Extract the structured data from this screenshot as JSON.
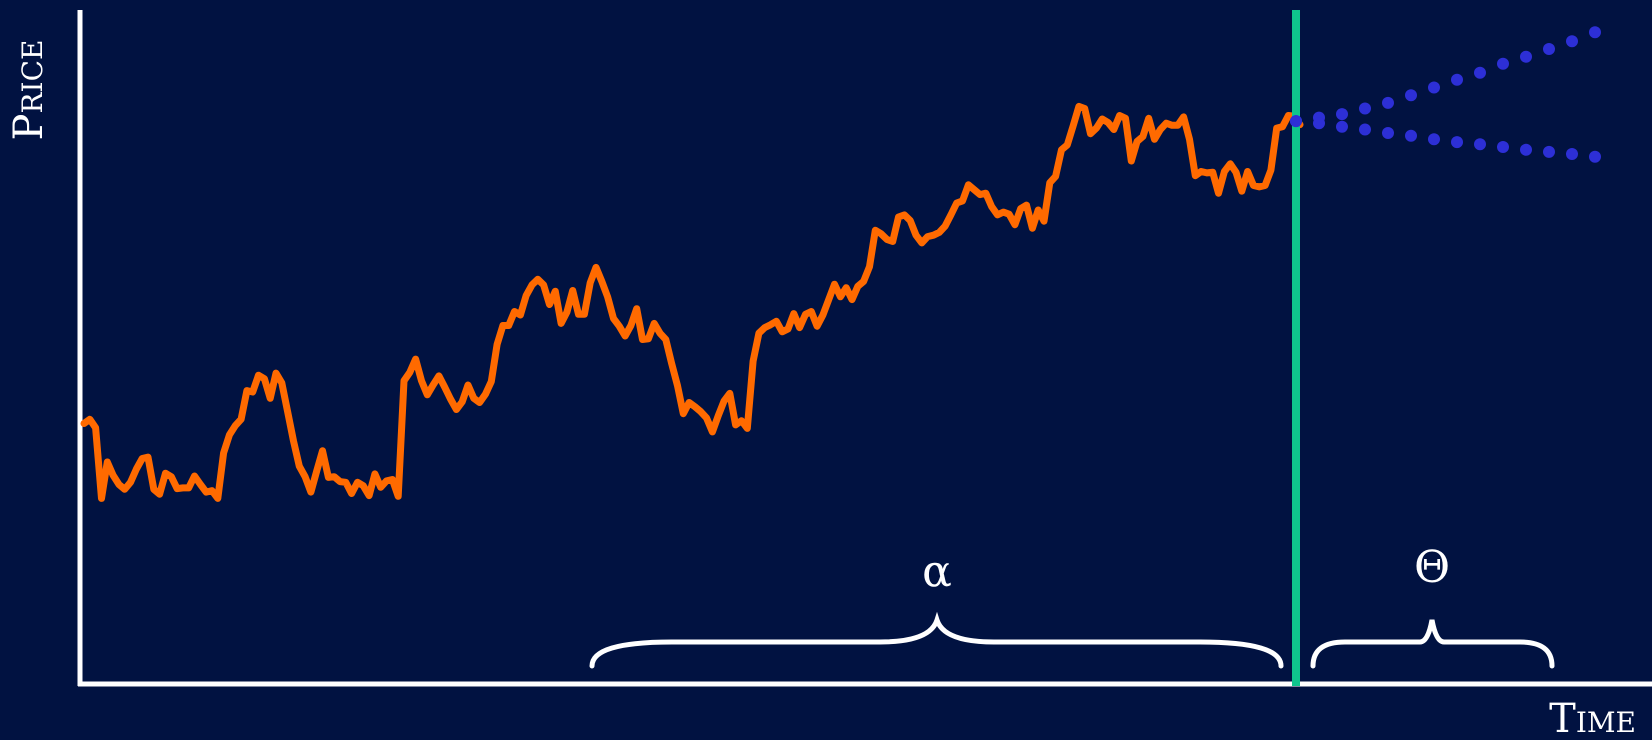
{
  "chart_data": {
    "type": "line",
    "xlabel": "Time",
    "ylabel": "Price",
    "ylim": [
      0,
      100
    ],
    "grid": false,
    "legend": "none",
    "series": [
      {
        "role": "history",
        "color": "#ff6a00",
        "values": [
          39.5,
          40.1,
          38.9,
          28.8,
          34.0,
          32.1,
          30.8,
          30.1,
          31.1,
          33.0,
          34.5,
          34.7,
          30.1,
          29.4,
          32.4,
          31.9,
          30.2,
          30.3,
          30.3,
          32.0,
          30.8,
          29.7,
          29.9,
          28.8,
          35.3,
          37.9,
          39.2,
          40.1,
          44.2,
          44.0,
          46.4,
          45.9,
          43.1,
          46.7,
          45.3,
          41.2,
          37.0,
          33.4,
          31.9,
          29.7,
          32.7,
          35.6,
          31.8,
          31.9,
          31.2,
          31.1,
          29.5,
          31.1,
          30.6,
          29.2,
          32.3,
          30.4,
          31.3,
          31.5,
          29.1,
          45.6,
          46.8,
          48.7,
          45.6,
          43.6,
          45.0,
          46.3,
          44.7,
          43.0,
          41.5,
          42.6,
          45.0,
          43.1,
          42.5,
          43.7,
          45.5,
          50.8,
          53.5,
          53.5,
          55.5,
          55.0,
          57.8,
          59.3,
          60.1,
          59.3,
          56.5,
          58.4,
          53.8,
          55.4,
          58.5,
          55.1,
          55.1,
          59.6,
          61.8,
          59.8,
          57.6,
          54.5,
          53.4,
          52.0,
          53.5,
          55.9,
          51.5,
          51.6,
          53.8,
          52.4,
          51.5,
          48.1,
          44.9,
          40.9,
          42.5,
          41.9,
          41.2,
          40.3,
          38.3,
          40.6,
          42.7,
          43.8,
          39.3,
          39.9,
          38.8,
          48.4,
          52.4,
          53.2,
          53.6,
          54.1,
          52.6,
          53.0,
          55.2,
          53.2,
          55.1,
          55.5,
          53.4,
          55.0,
          57.2,
          59.4,
          57.6,
          58.9,
          57.2,
          59.1,
          59.8,
          61.9,
          67.1,
          66.6,
          65.8,
          65.5,
          69.0,
          69.3,
          68.5,
          66.4,
          65.3,
          66.2,
          66.4,
          66.8,
          67.7,
          69.3,
          71.0,
          71.3,
          73.6,
          72.9,
          72.2,
          72.4,
          70.5,
          69.3,
          69.7,
          69.4,
          67.9,
          70.2,
          70.7,
          67.4,
          70.0,
          68.4,
          73.9,
          74.8,
          78.6,
          79.3,
          82.0,
          84.8,
          84.5,
          80.9,
          81.7,
          83.0,
          82.5,
          81.5,
          83.5,
          83.1,
          77.0,
          79.8,
          80.5,
          83.1,
          80.1,
          81.5,
          82.4,
          82.1,
          82.1,
          83.3,
          80.1,
          74.9,
          75.5,
          75.3,
          75.4,
          72.4,
          75.5,
          76.6,
          75.4,
          72.7,
          75.5,
          73.5,
          73.3,
          73.5,
          75.7,
          81.7,
          81.9,
          83.5,
          83.4,
          82.2
        ]
      },
      {
        "role": "forecast-up",
        "color": "#2d2fd6",
        "values": [
          82.7,
          83.2,
          83.7,
          84.5,
          85.3,
          86.4,
          87.5,
          88.6,
          89.6,
          90.9,
          91.9,
          93.0,
          94.1,
          95.4
        ]
      },
      {
        "role": "forecast-down",
        "color": "#2d2fd6",
        "values": [
          82.7,
          82.4,
          81.9,
          81.5,
          81.0,
          80.6,
          80.1,
          79.7,
          79.4,
          79.0,
          78.6,
          78.3,
          78.0,
          77.6
        ]
      }
    ],
    "annotations": [
      {
        "symbol": "α",
        "role": "history-span"
      },
      {
        "symbol": "Θ",
        "role": "forecast-span"
      }
    ],
    "divider_color": "#0fc58d",
    "axis_color": "#ffffff"
  }
}
